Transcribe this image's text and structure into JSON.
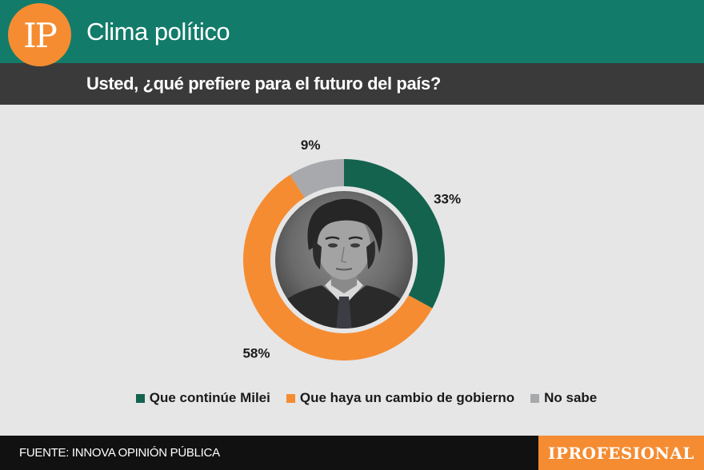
{
  "header": {
    "logo_text": "IP",
    "title": "Clima político"
  },
  "question": {
    "text": "Usted, ¿qué prefiere para el futuro del país?"
  },
  "chart_data": {
    "type": "pie",
    "title": "Usted, ¿qué prefiere para el futuro del país?",
    "categories": [
      "Que continúe Milei",
      "Que haya un cambio de gobierno",
      "No sabe"
    ],
    "values": [
      33,
      58,
      9
    ],
    "labels": [
      "33%",
      "58%",
      "9%"
    ],
    "colors": [
      "#14634f",
      "#f58c32",
      "#a7a9ac"
    ],
    "legend_position": "bottom"
  },
  "footer": {
    "source": "FUENTE: INNOVA OPINIÓN PÚBLICA",
    "brand": "IPROFESIONAL"
  }
}
